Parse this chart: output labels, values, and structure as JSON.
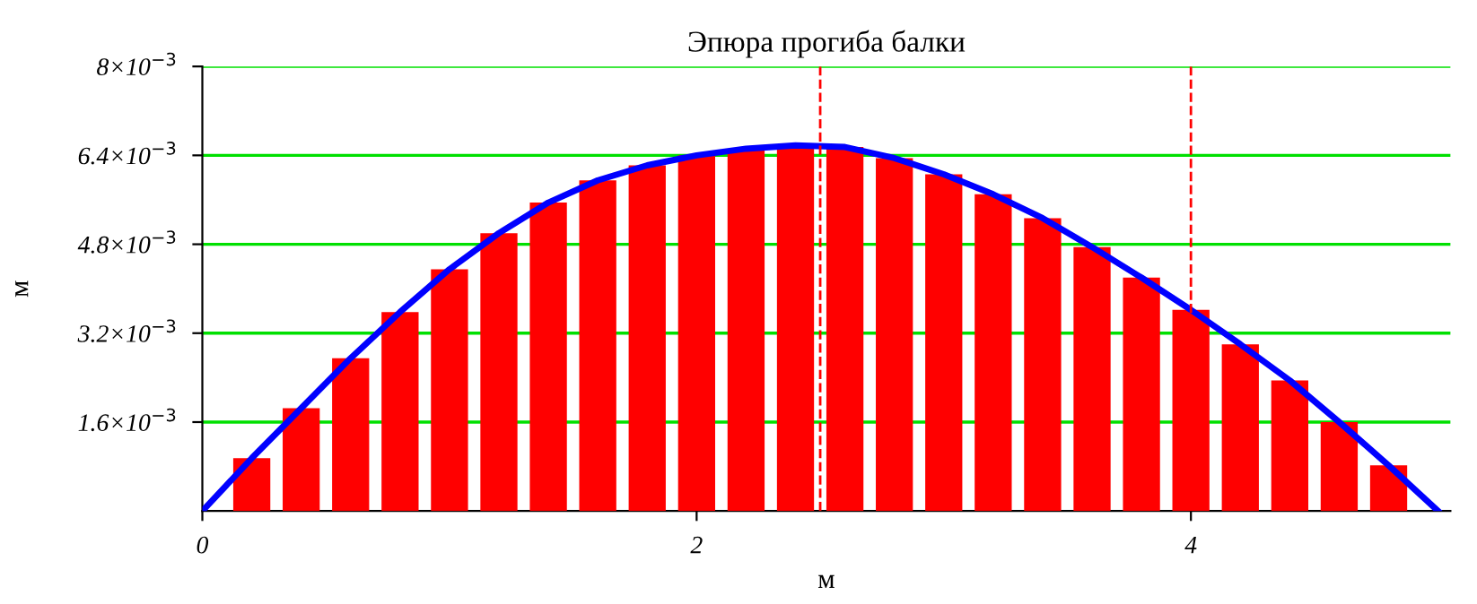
{
  "chart_data": {
    "type": "bar",
    "title": "Эпюра прогиба балки",
    "xlabel": "м",
    "ylabel": "м",
    "x": [
      0,
      0.2,
      0.4,
      0.6,
      0.8,
      1.0,
      1.2,
      1.4,
      1.6,
      1.8,
      2.0,
      2.2,
      2.4,
      2.6,
      2.8,
      3.0,
      3.2,
      3.4,
      3.6,
      3.8,
      4.0,
      4.2,
      4.4,
      4.6,
      4.8,
      5.0
    ],
    "series": [
      {
        "color": "#ff0000",
        "values": [
          0,
          0.00095,
          0.00185,
          0.00275,
          0.00358,
          0.00435,
          0.005,
          0.00555,
          0.00595,
          0.00622,
          0.0064,
          0.00652,
          0.00658,
          0.00655,
          0.00635,
          0.00606,
          0.0057,
          0.00527,
          0.00475,
          0.0042,
          0.00362,
          0.003,
          0.00235,
          0.0016,
          0.00082,
          0
        ]
      },
      {
        "type": "line",
        "color": "#0000ff",
        "values": [
          0,
          0.00095,
          0.00185,
          0.00275,
          0.00358,
          0.00435,
          0.005,
          0.00555,
          0.00595,
          0.00622,
          0.0064,
          0.00652,
          0.00658,
          0.00655,
          0.00635,
          0.00606,
          0.0057,
          0.00527,
          0.00475,
          0.0042,
          0.00362,
          0.003,
          0.00235,
          0.0016,
          0.00082,
          0
        ]
      }
    ],
    "xlim": [
      0,
      5.05
    ],
    "xticks": [
      0,
      2,
      4
    ],
    "ylim": [
      0,
      0.008
    ],
    "yticks": [
      {
        "value": 0.0016,
        "label": "1.6×10$^{−3}$"
      },
      {
        "value": 0.0032,
        "label": "3.2×10$^{−3}$"
      },
      {
        "value": 0.0048,
        "label": "4.8×10$^{−3}$"
      },
      {
        "value": 0.0064,
        "label": "6.4×10$^{−3}$"
      },
      {
        "value": 0.008,
        "label": "8×10$^{−3}$"
      }
    ],
    "ref_lines": [
      {
        "axis": "x",
        "value": 2.5,
        "color": "#ff0000",
        "line_style": "dashed"
      },
      {
        "axis": "x",
        "value": 4,
        "color": "#ff0000",
        "line_style": "dashed"
      }
    ],
    "grid": "y",
    "line_style": "solid",
    "marker": "none",
    "legend": false
  }
}
